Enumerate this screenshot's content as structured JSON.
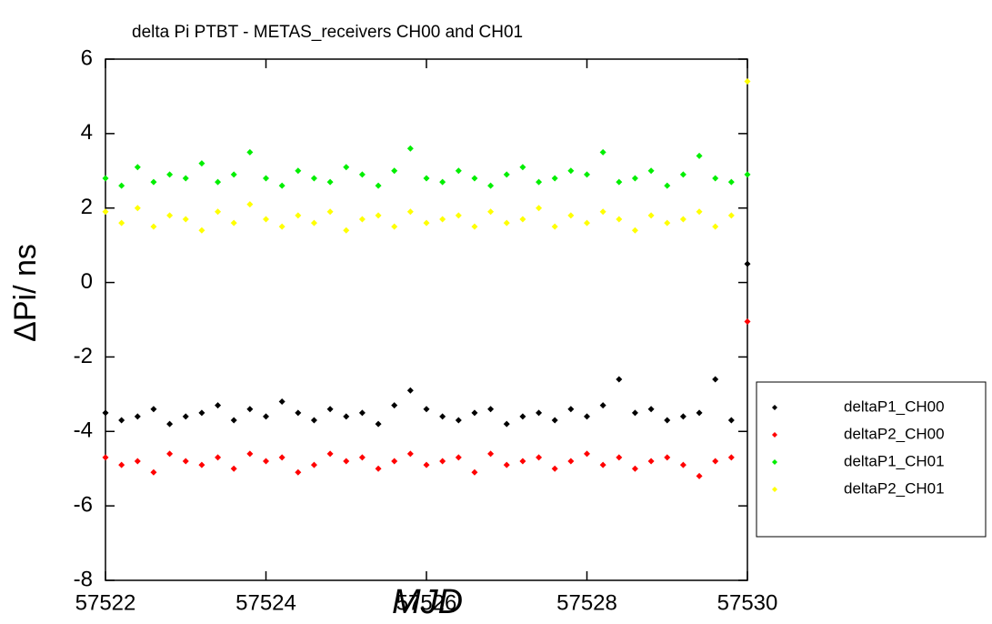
{
  "chart_data": {
    "type": "scatter",
    "title": "delta Pi PTBT - METAS_receivers CH00 and CH01",
    "xlabel": "MJD",
    "ylabel": "ΔPi/ ns",
    "xlim": [
      57522,
      57530
    ],
    "xticks": [
      57522,
      57524,
      57526,
      57528,
      57530
    ],
    "ylim": [
      -8,
      6
    ],
    "yticks": [
      -8,
      -6,
      -4,
      -2,
      0,
      2,
      4,
      6
    ],
    "grid": false,
    "legend": "right",
    "x": [
      57522,
      57522.2,
      57522.4,
      57522.6,
      57522.8,
      57523,
      57523.2,
      57523.4,
      57523.6,
      57523.8,
      57524,
      57524.2,
      57524.4,
      57524.6,
      57524.8,
      57525,
      57525.2,
      57525.4,
      57525.6,
      57525.8,
      57526,
      57526.2,
      57526.4,
      57526.6,
      57526.8,
      57527,
      57527.2,
      57527.4,
      57527.6,
      57527.8,
      57528,
      57528.2,
      57528.4,
      57528.6,
      57528.8,
      57529,
      57529.2,
      57529.4,
      57529.6,
      57529.8,
      57530
    ],
    "series": [
      {
        "name": "deltaP1_CH00",
        "color": "#000000",
        "values": [
          -3.5,
          -3.7,
          -3.6,
          -3.4,
          -3.8,
          -3.6,
          -3.5,
          -3.3,
          -3.7,
          -3.4,
          -3.6,
          -3.2,
          -3.5,
          -3.7,
          -3.4,
          -3.6,
          -3.5,
          -3.8,
          -3.3,
          -2.9,
          -3.4,
          -3.6,
          -3.7,
          -3.5,
          -3.4,
          -3.8,
          -3.6,
          -3.5,
          -3.7,
          -3.4,
          -3.6,
          -3.3,
          -2.6,
          -3.5,
          -3.4,
          -3.7,
          -3.6,
          -3.5,
          -2.6,
          -3.7,
          0.5
        ]
      },
      {
        "name": "deltaP2_CH00",
        "color": "#ff0000",
        "values": [
          -4.7,
          -4.9,
          -4.8,
          -5.1,
          -4.6,
          -4.8,
          -4.9,
          -4.7,
          -5.0,
          -4.6,
          -4.8,
          -4.7,
          -5.1,
          -4.9,
          -4.6,
          -4.8,
          -4.7,
          -5.0,
          -4.8,
          -4.6,
          -4.9,
          -4.8,
          -4.7,
          -5.1,
          -4.6,
          -4.9,
          -4.8,
          -4.7,
          -5.0,
          -4.8,
          -4.6,
          -4.9,
          -4.7,
          -5.0,
          -4.8,
          -4.7,
          -4.9,
          -5.2,
          -4.8,
          -4.7,
          -1.05
        ]
      },
      {
        "name": "deltaP1_CH01",
        "color": "#00ee00",
        "values": [
          2.8,
          2.6,
          3.1,
          2.7,
          2.9,
          2.8,
          3.2,
          2.7,
          2.9,
          3.5,
          2.8,
          2.6,
          3.0,
          2.8,
          2.7,
          3.1,
          2.9,
          2.6,
          3.0,
          3.6,
          2.8,
          2.7,
          3.0,
          2.8,
          2.6,
          2.9,
          3.1,
          2.7,
          2.8,
          3.0,
          2.9,
          3.5,
          2.7,
          2.8,
          3.0,
          2.6,
          2.9,
          3.4,
          2.8,
          2.7,
          2.9
        ]
      },
      {
        "name": "deltaP2_CH01",
        "color": "#ffff00",
        "values": [
          1.9,
          1.6,
          2.0,
          1.5,
          1.8,
          1.7,
          1.4,
          1.9,
          1.6,
          2.1,
          1.7,
          1.5,
          1.8,
          1.6,
          1.9,
          1.4,
          1.7,
          1.8,
          1.5,
          1.9,
          1.6,
          1.7,
          1.8,
          1.5,
          1.9,
          1.6,
          1.7,
          2.0,
          1.5,
          1.8,
          1.6,
          1.9,
          1.7,
          1.4,
          1.8,
          1.6,
          1.7,
          1.9,
          1.5,
          1.8,
          5.4
        ]
      }
    ]
  }
}
